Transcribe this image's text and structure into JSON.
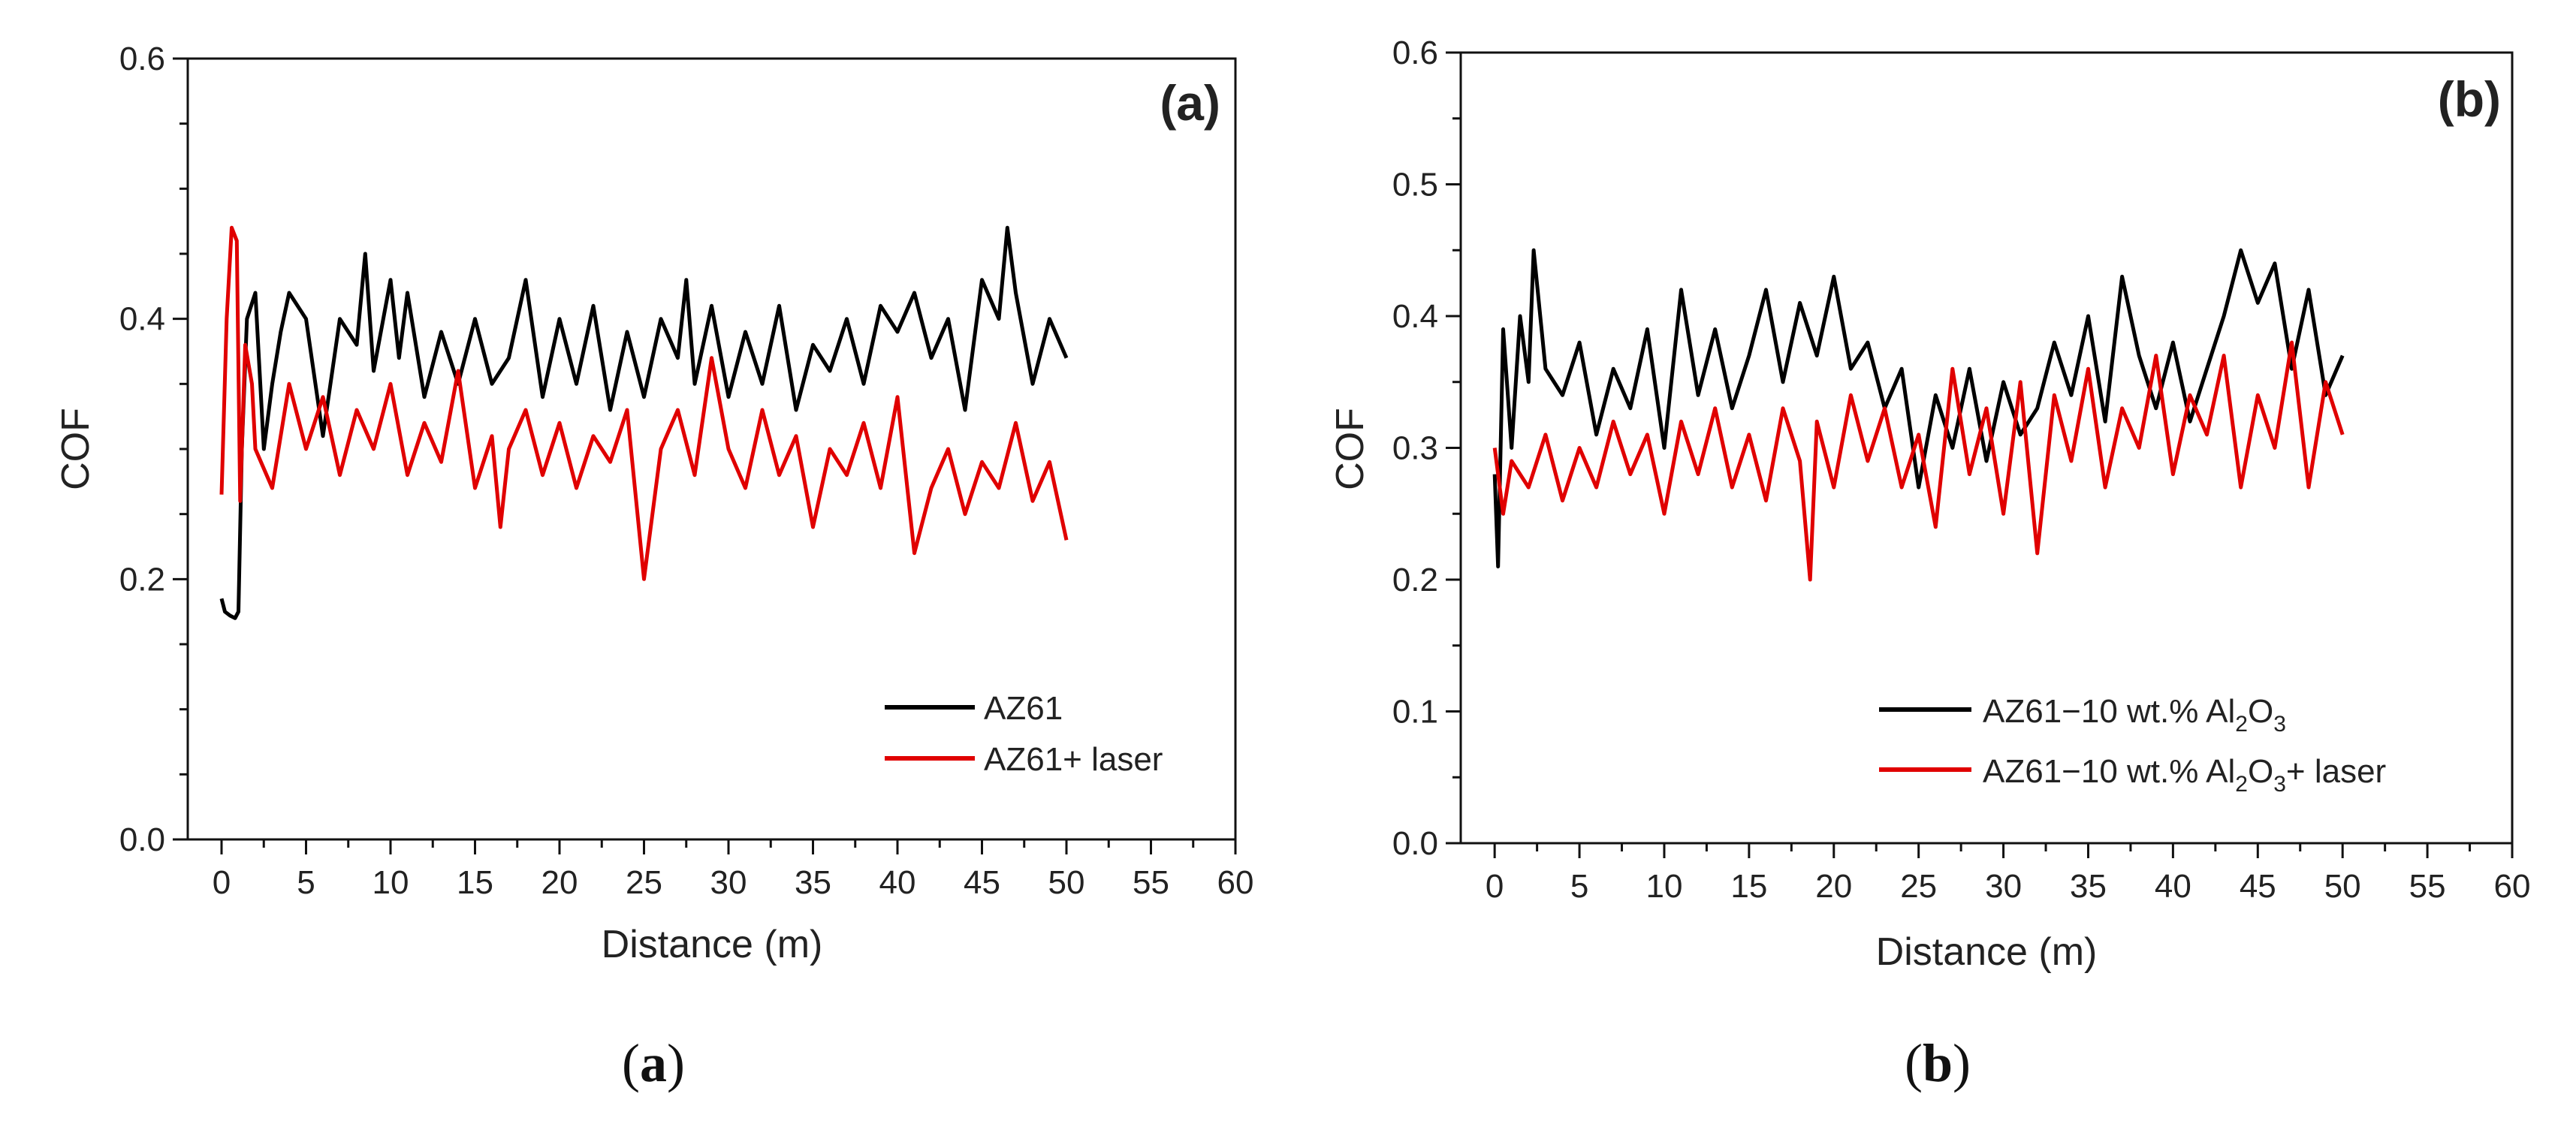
{
  "figure": {
    "captions": [
      {
        "open": "(",
        "letter": "a",
        "close": ")"
      },
      {
        "open": "(",
        "letter": "b",
        "close": ")"
      }
    ]
  },
  "chart_data": [
    {
      "type": "line",
      "panel_label": "(a)",
      "xlabel": "Distance (m)",
      "ylabel": "COF",
      "xlim": [
        -2,
        60
      ],
      "ylim": [
        0.0,
        0.6
      ],
      "x_ticks": [
        0,
        5,
        10,
        15,
        20,
        25,
        30,
        35,
        40,
        45,
        50,
        55,
        60
      ],
      "x_tick_labels": [
        "0",
        "5",
        "10",
        "15",
        "20",
        "25",
        "30",
        "35",
        "40",
        "45",
        "50",
        "55",
        "60"
      ],
      "y_ticks": [
        0.0,
        0.2,
        0.4,
        0.6
      ],
      "y_tick_labels": [
        "0.0",
        "0.2",
        "0.4",
        "0.6"
      ],
      "legend_position": "bottom-right",
      "series": [
        {
          "name": "AZ61",
          "color": "#000000",
          "legend_parts": {
            "main": "AZ61"
          },
          "x": [
            0,
            0.2,
            0.5,
            0.8,
            1.0,
            1.2,
            1.5,
            2,
            2.5,
            3,
            3.5,
            4,
            5,
            6,
            7,
            8,
            8.5,
            9,
            10,
            10.5,
            11,
            12,
            13,
            14,
            15,
            16,
            17,
            18,
            19,
            20,
            21,
            22,
            23,
            24,
            25,
            26,
            27,
            27.5,
            28,
            29,
            30,
            31,
            32,
            33,
            34,
            35,
            36,
            37,
            38,
            39,
            40,
            41,
            42,
            43,
            44,
            45,
            46,
            46.5,
            47,
            48,
            49,
            50
          ],
          "values": [
            0.185,
            0.175,
            0.172,
            0.17,
            0.175,
            0.3,
            0.4,
            0.42,
            0.3,
            0.35,
            0.39,
            0.42,
            0.4,
            0.31,
            0.4,
            0.38,
            0.45,
            0.36,
            0.43,
            0.37,
            0.42,
            0.34,
            0.39,
            0.35,
            0.4,
            0.35,
            0.37,
            0.43,
            0.34,
            0.4,
            0.35,
            0.41,
            0.33,
            0.39,
            0.34,
            0.4,
            0.37,
            0.43,
            0.35,
            0.41,
            0.34,
            0.39,
            0.35,
            0.41,
            0.33,
            0.38,
            0.36,
            0.4,
            0.35,
            0.41,
            0.39,
            0.42,
            0.37,
            0.4,
            0.33,
            0.43,
            0.4,
            0.47,
            0.42,
            0.35,
            0.4,
            0.37
          ]
        },
        {
          "name": "AZ61+ laser",
          "color": "#e00000",
          "legend_parts": {
            "main": "AZ61+ laser"
          },
          "x": [
            0,
            0.3,
            0.6,
            0.9,
            1.1,
            1.4,
            1.8,
            2,
            3,
            4,
            5,
            6,
            7,
            8,
            9,
            10,
            11,
            12,
            13,
            14,
            15,
            16,
            16.5,
            17,
            18,
            19,
            20,
            21,
            22,
            23,
            24,
            25,
            26,
            27,
            28,
            29,
            30,
            31,
            32,
            33,
            34,
            35,
            36,
            37,
            38,
            39,
            40,
            41,
            42,
            43,
            44,
            45,
            46,
            47,
            48,
            49,
            50
          ],
          "values": [
            0.265,
            0.4,
            0.47,
            0.46,
            0.26,
            0.38,
            0.35,
            0.3,
            0.27,
            0.35,
            0.3,
            0.34,
            0.28,
            0.33,
            0.3,
            0.35,
            0.28,
            0.32,
            0.29,
            0.36,
            0.27,
            0.31,
            0.24,
            0.3,
            0.33,
            0.28,
            0.32,
            0.27,
            0.31,
            0.29,
            0.33,
            0.2,
            0.3,
            0.33,
            0.28,
            0.37,
            0.3,
            0.27,
            0.33,
            0.28,
            0.31,
            0.24,
            0.3,
            0.28,
            0.32,
            0.27,
            0.34,
            0.22,
            0.27,
            0.3,
            0.25,
            0.29,
            0.27,
            0.32,
            0.26,
            0.29,
            0.23
          ]
        }
      ]
    },
    {
      "type": "line",
      "panel_label": "(b)",
      "xlabel": "Distance (m)",
      "ylabel": "COF",
      "xlim": [
        -2,
        60
      ],
      "ylim": [
        0.0,
        0.6
      ],
      "x_ticks": [
        0,
        5,
        10,
        15,
        20,
        25,
        30,
        35,
        40,
        45,
        50,
        55,
        60
      ],
      "x_tick_labels": [
        "0",
        "5",
        "10",
        "15",
        "20",
        "25",
        "30",
        "35",
        "40",
        "45",
        "50",
        "55",
        "60"
      ],
      "y_ticks": [
        0.0,
        0.1,
        0.2,
        0.3,
        0.4,
        0.5,
        0.6
      ],
      "y_tick_labels": [
        "0.0",
        "0.1",
        "0.2",
        "0.3",
        "0.4",
        "0.5",
        "0.6"
      ],
      "legend_position": "bottom-right",
      "series": [
        {
          "name": "AZ61−10 wt.% Al2O3",
          "color": "#000000",
          "legend_parts": {
            "pre": "AZ61−10 wt.% Al",
            "sub1": "2",
            "mid": "O",
            "sub2": "3",
            "post": ""
          },
          "x": [
            0,
            0.2,
            0.5,
            1,
            1.5,
            2,
            2.3,
            3,
            4,
            5,
            6,
            7,
            8,
            9,
            10,
            11,
            12,
            13,
            14,
            15,
            16,
            17,
            18,
            19,
            20,
            21,
            22,
            23,
            24,
            25,
            26,
            27,
            28,
            29,
            30,
            31,
            32,
            33,
            34,
            35,
            36,
            37,
            38,
            39,
            40,
            41,
            42,
            43,
            44,
            45,
            46,
            47,
            48,
            49,
            50
          ],
          "values": [
            0.28,
            0.21,
            0.39,
            0.3,
            0.4,
            0.35,
            0.45,
            0.36,
            0.34,
            0.38,
            0.31,
            0.36,
            0.33,
            0.39,
            0.3,
            0.42,
            0.34,
            0.39,
            0.33,
            0.37,
            0.42,
            0.35,
            0.41,
            0.37,
            0.43,
            0.36,
            0.38,
            0.33,
            0.36,
            0.27,
            0.34,
            0.3,
            0.36,
            0.29,
            0.35,
            0.31,
            0.33,
            0.38,
            0.34,
            0.4,
            0.32,
            0.43,
            0.37,
            0.33,
            0.38,
            0.32,
            0.36,
            0.4,
            0.45,
            0.41,
            0.44,
            0.36,
            0.42,
            0.34,
            0.37
          ]
        },
        {
          "name": "AZ61−10 wt.% Al2O3+ laser",
          "color": "#e00000",
          "legend_parts": {
            "pre": "AZ61−10 wt.% Al",
            "sub1": "2",
            "mid": "O",
            "sub2": "3",
            "post": "+ laser"
          },
          "x": [
            0,
            0.5,
            1,
            2,
            3,
            4,
            5,
            6,
            7,
            8,
            9,
            10,
            11,
            12,
            13,
            14,
            15,
            16,
            17,
            18,
            18.6,
            19,
            20,
            21,
            22,
            23,
            24,
            25,
            26,
            27,
            28,
            29,
            30,
            31,
            32,
            33,
            34,
            35,
            36,
            37,
            38,
            39,
            40,
            41,
            42,
            43,
            44,
            45,
            46,
            47,
            48,
            49,
            50
          ],
          "values": [
            0.3,
            0.25,
            0.29,
            0.27,
            0.31,
            0.26,
            0.3,
            0.27,
            0.32,
            0.28,
            0.31,
            0.25,
            0.32,
            0.28,
            0.33,
            0.27,
            0.31,
            0.26,
            0.33,
            0.29,
            0.2,
            0.32,
            0.27,
            0.34,
            0.29,
            0.33,
            0.27,
            0.31,
            0.24,
            0.36,
            0.28,
            0.33,
            0.25,
            0.35,
            0.22,
            0.34,
            0.29,
            0.36,
            0.27,
            0.33,
            0.3,
            0.37,
            0.28,
            0.34,
            0.31,
            0.37,
            0.27,
            0.34,
            0.3,
            0.38,
            0.27,
            0.35,
            0.31
          ]
        }
      ]
    }
  ]
}
